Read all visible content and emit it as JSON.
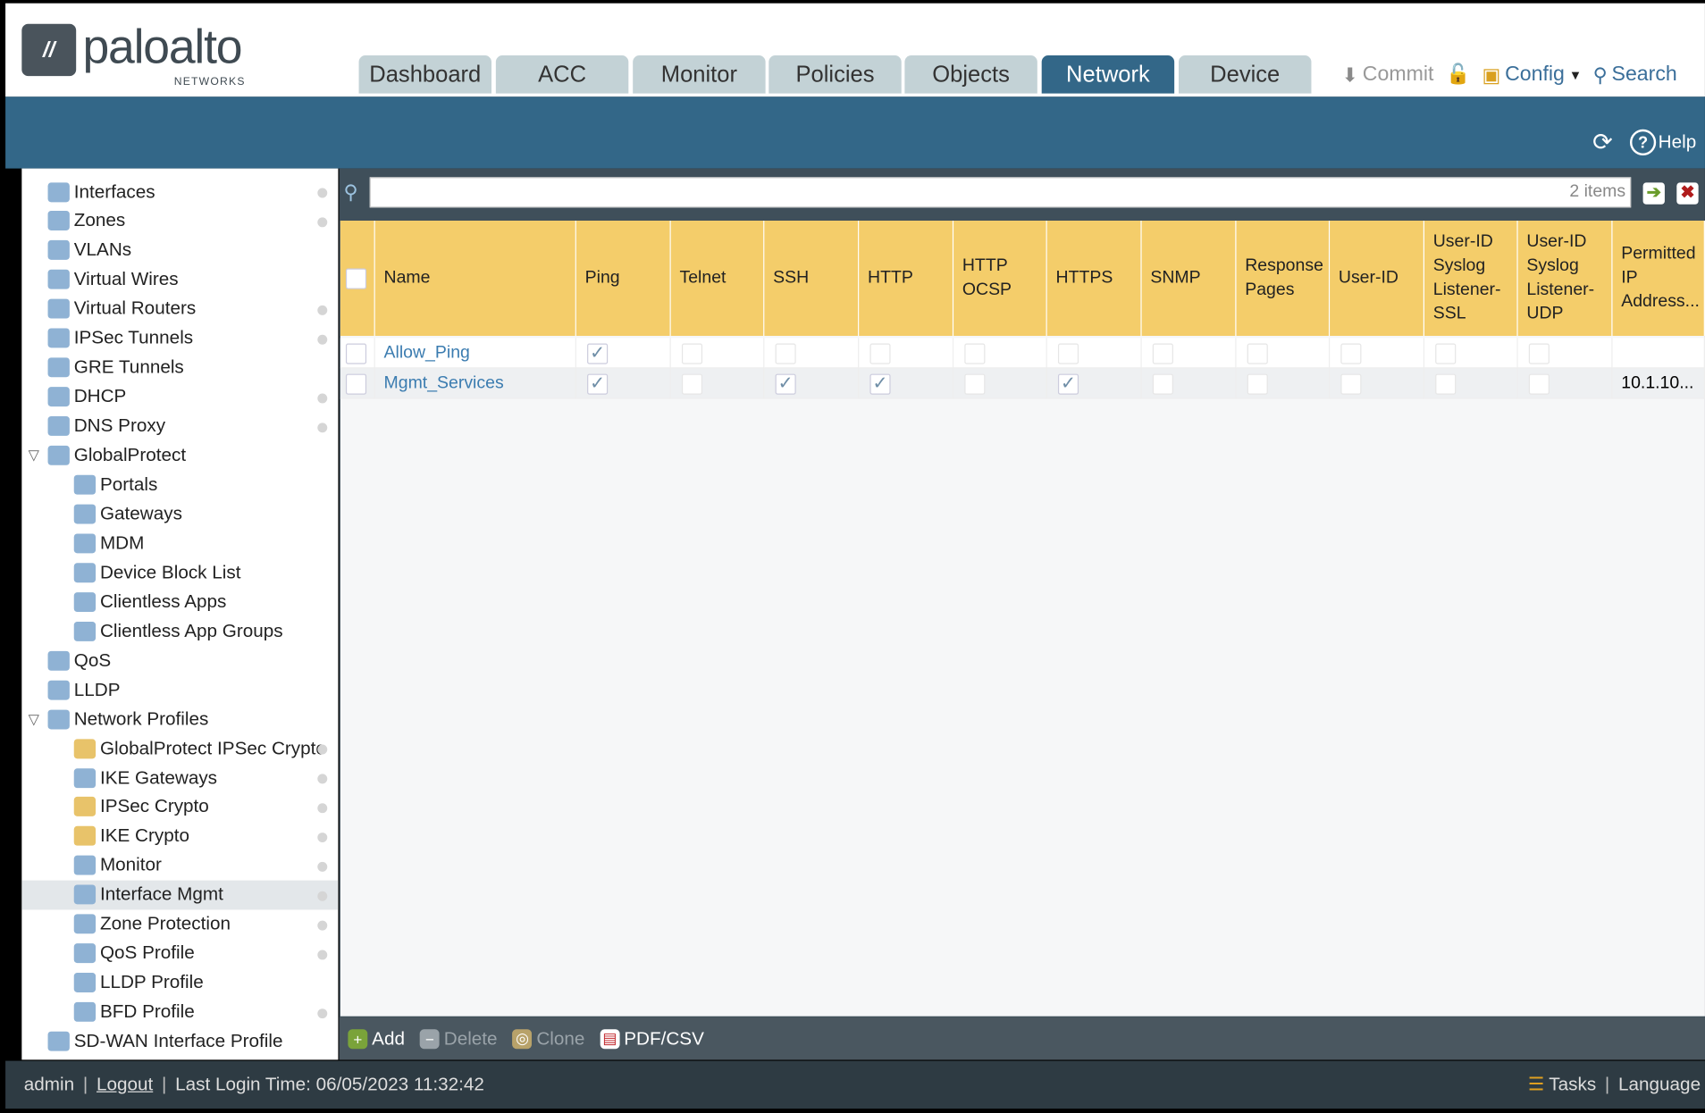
{
  "brand": {
    "name": "paloalto",
    "sub": "NETWORKS"
  },
  "tabs": [
    {
      "label": "Dashboard"
    },
    {
      "label": "ACC"
    },
    {
      "label": "Monitor"
    },
    {
      "label": "Policies"
    },
    {
      "label": "Objects"
    },
    {
      "label": "Network",
      "active": true
    },
    {
      "label": "Device"
    }
  ],
  "toolbar": {
    "commit": "Commit",
    "config": "Config",
    "search": "Search",
    "help": "Help"
  },
  "sidebar": {
    "items": [
      {
        "label": "Interfaces",
        "level": 0,
        "icon": "interfaces-icon",
        "dot": true
      },
      {
        "label": "Zones",
        "level": 0,
        "icon": "zones-icon",
        "dot": true
      },
      {
        "label": "VLANs",
        "level": 0,
        "icon": "vlans-icon"
      },
      {
        "label": "Virtual Wires",
        "level": 0,
        "icon": "virtual-wires-icon"
      },
      {
        "label": "Virtual Routers",
        "level": 0,
        "icon": "virtual-routers-icon",
        "dot": true
      },
      {
        "label": "IPSec Tunnels",
        "level": 0,
        "icon": "ipsec-tunnels-icon",
        "dot": true
      },
      {
        "label": "GRE Tunnels",
        "level": 0,
        "icon": "gre-tunnels-icon"
      },
      {
        "label": "DHCP",
        "level": 0,
        "icon": "dhcp-icon",
        "dot": true
      },
      {
        "label": "DNS Proxy",
        "level": 0,
        "icon": "dns-proxy-icon",
        "dot": true
      },
      {
        "label": "GlobalProtect",
        "level": 0,
        "icon": "globalprotect-icon",
        "expanded": true
      },
      {
        "label": "Portals",
        "level": 1,
        "icon": "portals-icon"
      },
      {
        "label": "Gateways",
        "level": 1,
        "icon": "gateways-icon"
      },
      {
        "label": "MDM",
        "level": 1,
        "icon": "mdm-icon"
      },
      {
        "label": "Device Block List",
        "level": 1,
        "icon": "device-block-list-icon"
      },
      {
        "label": "Clientless Apps",
        "level": 1,
        "icon": "clientless-apps-icon"
      },
      {
        "label": "Clientless App Groups",
        "level": 1,
        "icon": "clientless-app-groups-icon"
      },
      {
        "label": "QoS",
        "level": 0,
        "icon": "qos-icon"
      },
      {
        "label": "LLDP",
        "level": 0,
        "icon": "lldp-icon"
      },
      {
        "label": "Network Profiles",
        "level": 0,
        "icon": "network-profiles-icon",
        "expanded": true
      },
      {
        "label": "GlobalProtect IPSec Crypto",
        "level": 1,
        "icon": "lock-icon",
        "dot": true
      },
      {
        "label": "IKE Gateways",
        "level": 1,
        "icon": "ike-gateways-icon",
        "dot": true
      },
      {
        "label": "IPSec Crypto",
        "level": 1,
        "icon": "lock-icon",
        "dot": true
      },
      {
        "label": "IKE Crypto",
        "level": 1,
        "icon": "lock-icon",
        "dot": true
      },
      {
        "label": "Monitor",
        "level": 1,
        "icon": "monitor-icon",
        "dot": true
      },
      {
        "label": "Interface Mgmt",
        "level": 1,
        "icon": "interface-mgmt-icon",
        "dot": true,
        "selected": true
      },
      {
        "label": "Zone Protection",
        "level": 1,
        "icon": "zone-protection-icon",
        "dot": true
      },
      {
        "label": "QoS Profile",
        "level": 1,
        "icon": "qos-profile-icon",
        "dot": true
      },
      {
        "label": "LLDP Profile",
        "level": 1,
        "icon": "lldp-profile-icon"
      },
      {
        "label": "BFD Profile",
        "level": 1,
        "icon": "bfd-profile-icon",
        "dot": true
      },
      {
        "label": "SD-WAN Interface Profile",
        "level": 0,
        "icon": "sdwan-icon"
      }
    ]
  },
  "search": {
    "value": "",
    "count": "2 items"
  },
  "table": {
    "columns": [
      "Name",
      "Ping",
      "Telnet",
      "SSH",
      "HTTP",
      "HTTP OCSP",
      "HTTPS",
      "SNMP",
      "Response Pages",
      "User-ID",
      "User-ID Syslog Listener-SSL",
      "User-ID Syslog Listener-UDP",
      "Permitted IP Address..."
    ],
    "rows": [
      {
        "name": "Allow_Ping",
        "checks": [
          true,
          false,
          false,
          false,
          false,
          false,
          false,
          false,
          false,
          false,
          false
        ],
        "permitted": ""
      },
      {
        "name": "Mgmt_Services",
        "checks": [
          true,
          false,
          true,
          true,
          false,
          true,
          false,
          false,
          false,
          false,
          false
        ],
        "permitted": "10.1.10..."
      }
    ]
  },
  "actions": {
    "add": "Add",
    "delete": "Delete",
    "clone": "Clone",
    "pdf": "PDF/CSV"
  },
  "footer": {
    "user": "admin",
    "logout": "Logout",
    "last_login": "Last Login Time: 06/05/2023 11:32:42",
    "tasks": "Tasks",
    "language": "Language"
  },
  "colors": {
    "band": "#336788",
    "header_row": "#f4cd6a",
    "link": "#3b7cb0"
  }
}
